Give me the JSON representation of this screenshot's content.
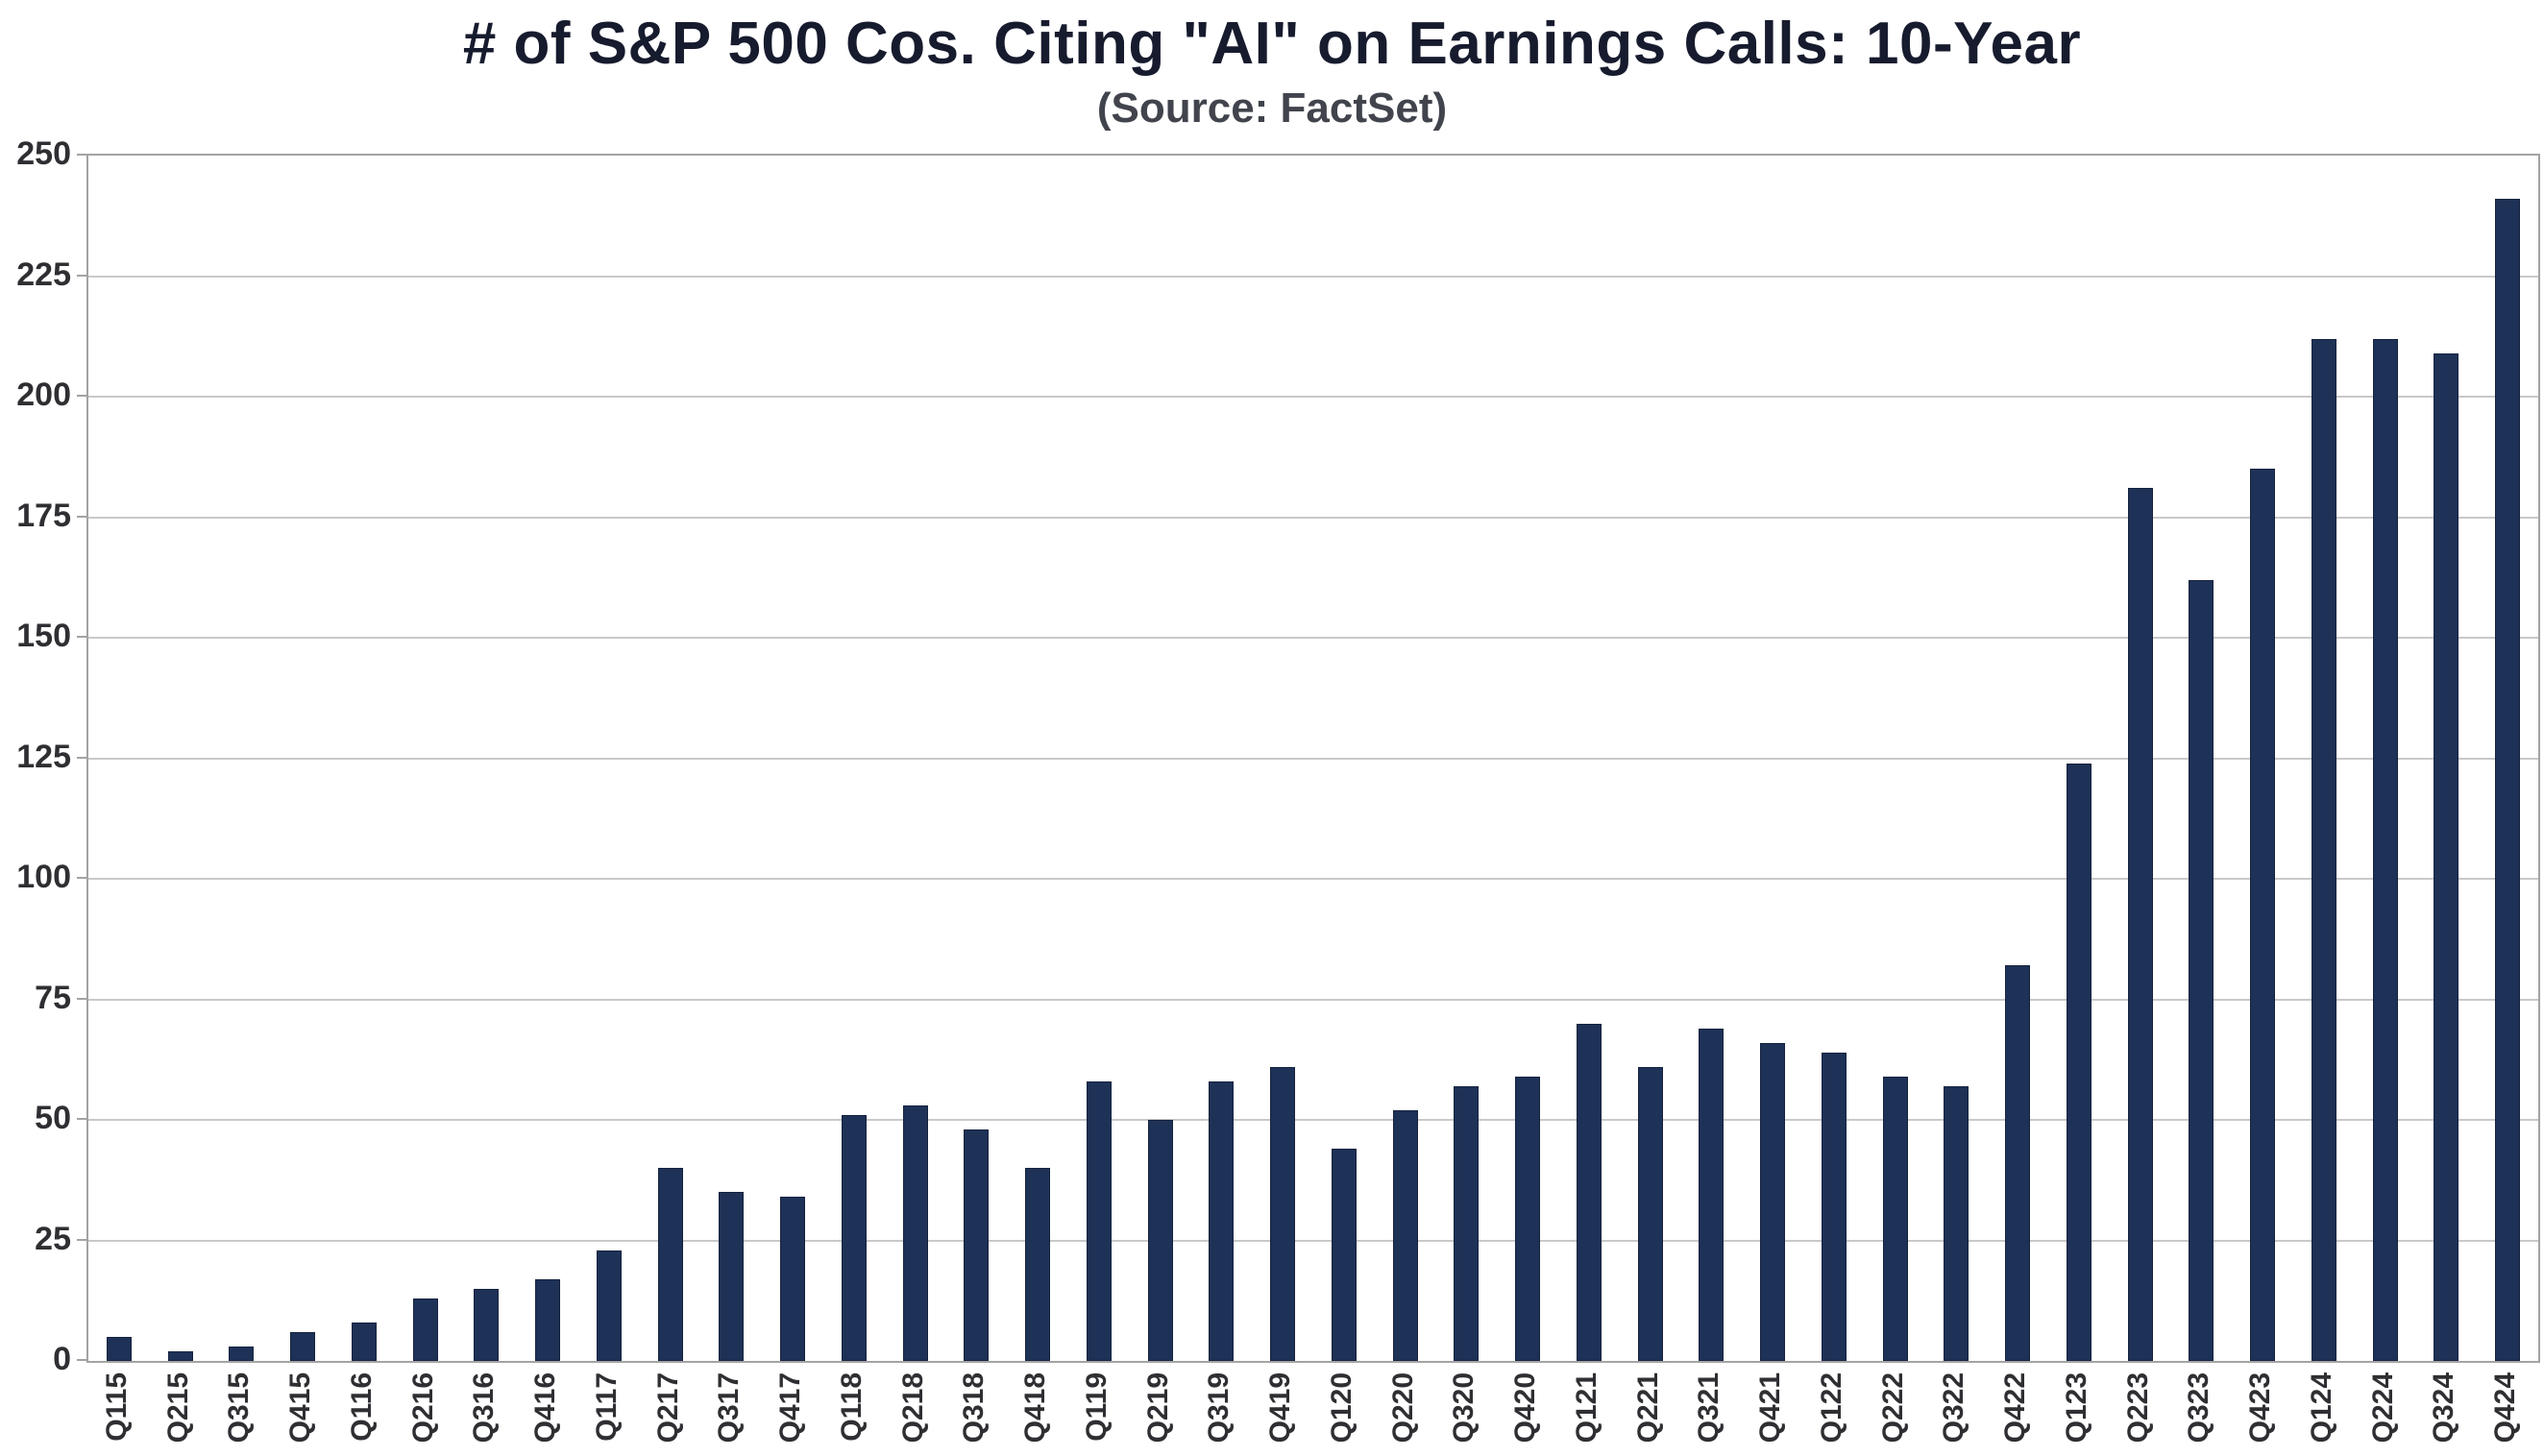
{
  "chart_data": {
    "type": "bar",
    "title": "# of S&P 500 Cos. Citing \"AI\" on Earnings Calls: 10-Year",
    "subtitle": "(Source: FactSet)",
    "categories": [
      "Q115",
      "Q215",
      "Q315",
      "Q415",
      "Q116",
      "Q216",
      "Q316",
      "Q416",
      "Q117",
      "Q217",
      "Q317",
      "Q417",
      "Q118",
      "Q218",
      "Q318",
      "Q418",
      "Q119",
      "Q219",
      "Q319",
      "Q419",
      "Q120",
      "Q220",
      "Q320",
      "Q420",
      "Q121",
      "Q221",
      "Q321",
      "Q421",
      "Q122",
      "Q222",
      "Q322",
      "Q422",
      "Q123",
      "Q223",
      "Q323",
      "Q423",
      "Q124",
      "Q224",
      "Q324",
      "Q424"
    ],
    "values": [
      5,
      2,
      3,
      6,
      8,
      13,
      15,
      17,
      23,
      40,
      35,
      34,
      51,
      53,
      48,
      40,
      58,
      50,
      58,
      61,
      44,
      52,
      57,
      59,
      70,
      61,
      69,
      66,
      64,
      59,
      57,
      82,
      124,
      181,
      162,
      185,
      212,
      212,
      209,
      241
    ],
    "xlabel": "",
    "ylabel": "",
    "ylim": [
      0,
      250
    ],
    "yticks": [
      0,
      25,
      50,
      75,
      100,
      125,
      150,
      175,
      200,
      225,
      250
    ],
    "grid": "horizontal",
    "legend_position": "none",
    "bar_color": "#1e3156",
    "bar_border_color": "#16233f",
    "gridline_color": "#c9c9c9",
    "axis_border_color": "#a3a3a3",
    "title_color": "#171b2e",
    "subtitle_color": "#41444c",
    "tick_label_color": "#2f2f33"
  }
}
